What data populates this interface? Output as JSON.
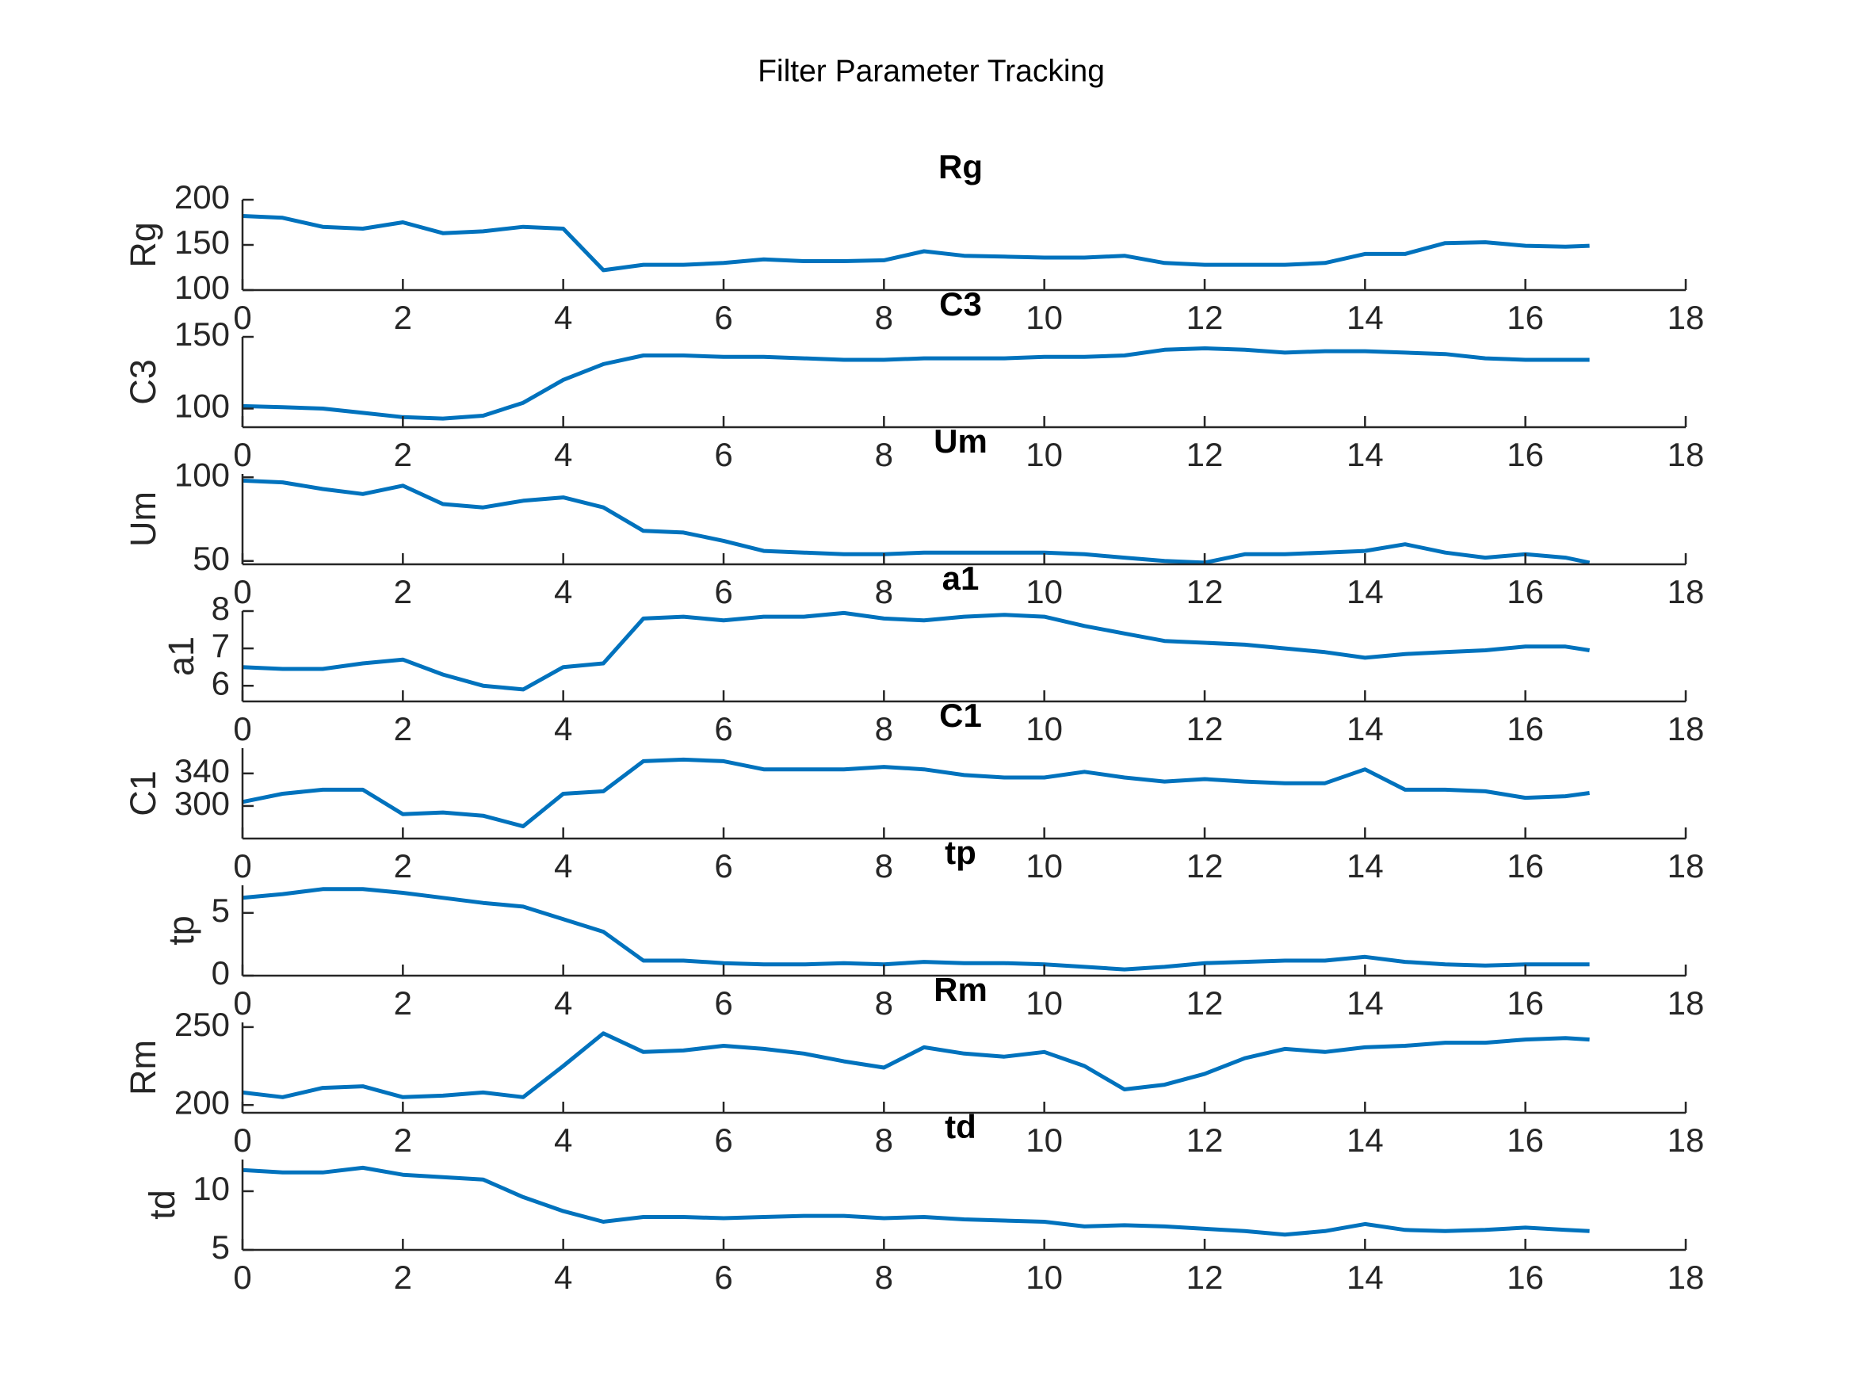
{
  "title": "Filter Parameter Tracking",
  "chart_data": [
    {
      "type": "line",
      "title": "Rg",
      "ylabel": "Rg",
      "color": "#0072bd",
      "x": [
        0,
        0.5,
        1,
        1.5,
        2,
        2.5,
        3,
        3.5,
        4,
        4.5,
        5,
        5.5,
        6,
        6.5,
        7,
        7.5,
        8,
        8.5,
        9,
        9.5,
        10,
        10.5,
        11,
        11.5,
        12,
        12.5,
        13,
        13.5,
        14,
        14.5,
        15,
        15.5,
        16,
        16.5,
        16.8
      ],
      "values": [
        182,
        180,
        170,
        168,
        175,
        163,
        165,
        170,
        168,
        122,
        128,
        128,
        130,
        134,
        132,
        132,
        133,
        143,
        138,
        137,
        136,
        136,
        138,
        130,
        128,
        128,
        128,
        130,
        140,
        140,
        152,
        153,
        149,
        148,
        149
      ],
      "xlim": [
        0,
        18
      ],
      "xticks": [
        0,
        2,
        4,
        6,
        8,
        10,
        12,
        14,
        16,
        18
      ],
      "ylim": [
        100,
        200
      ],
      "yticks": [
        100,
        150,
        200
      ]
    },
    {
      "type": "line",
      "title": "C3",
      "ylabel": "C3",
      "color": "#0072bd",
      "x": [
        0,
        0.5,
        1,
        1.5,
        2,
        2.5,
        3,
        3.5,
        4,
        4.5,
        5,
        5.5,
        6,
        6.5,
        7,
        7.5,
        8,
        8.5,
        9,
        9.5,
        10,
        10.5,
        11,
        11.5,
        12,
        12.5,
        13,
        13.5,
        14,
        14.5,
        15,
        15.5,
        16,
        16.5,
        16.8
      ],
      "values": [
        101.7,
        101,
        100,
        97,
        94,
        93,
        95,
        104,
        120,
        131,
        137,
        137,
        136,
        136,
        135,
        134,
        134,
        135,
        135,
        135,
        136,
        136,
        137,
        141,
        142,
        141,
        139,
        140,
        140,
        139,
        138,
        135,
        134,
        134,
        134
      ],
      "xlim": [
        0,
        18
      ],
      "xticks": [
        0,
        2,
        4,
        6,
        8,
        10,
        12,
        14,
        16,
        18
      ],
      "ylim": [
        87,
        150
      ],
      "yticks": [
        100,
        150
      ]
    },
    {
      "type": "line",
      "title": "Um",
      "ylabel": "Um",
      "color": "#0072bd",
      "x": [
        0,
        0.5,
        1,
        1.5,
        2,
        2.5,
        3,
        3.5,
        4,
        4.5,
        5,
        5.5,
        6,
        6.5,
        7,
        7.5,
        8,
        8.5,
        9,
        9.5,
        10,
        10.5,
        11,
        11.5,
        12,
        12.5,
        13,
        13.5,
        14,
        14.5,
        15,
        15.5,
        16,
        16.5,
        16.8
      ],
      "values": [
        98,
        97,
        93,
        90,
        95,
        84,
        82,
        86,
        88,
        82,
        68,
        67,
        62,
        56,
        55,
        54,
        54,
        55,
        55,
        55,
        55,
        54,
        52,
        50,
        49,
        54,
        54,
        55,
        56,
        60,
        55,
        52,
        54,
        52,
        49
      ],
      "xlim": [
        0,
        18
      ],
      "xticks": [
        0,
        2,
        4,
        6,
        8,
        10,
        12,
        14,
        16,
        18
      ],
      "ylim": [
        48,
        102
      ],
      "yticks": [
        50,
        100
      ]
    },
    {
      "type": "line",
      "title": "a1",
      "ylabel": "a1",
      "color": "#0072bd",
      "x": [
        0,
        0.5,
        1,
        1.5,
        2,
        2.5,
        3,
        3.5,
        4,
        4.5,
        5,
        5.5,
        6,
        6.5,
        7,
        7.5,
        8,
        8.5,
        9,
        9.5,
        10,
        10.5,
        11,
        11.5,
        12,
        12.5,
        13,
        13.5,
        14,
        14.5,
        15,
        15.5,
        16,
        16.5,
        16.8
      ],
      "values": [
        6.5,
        6.45,
        6.45,
        6.6,
        6.7,
        6.3,
        6.0,
        5.9,
        6.5,
        6.6,
        7.8,
        7.85,
        7.75,
        7.85,
        7.85,
        7.95,
        7.8,
        7.75,
        7.85,
        7.9,
        7.85,
        7.6,
        7.4,
        7.2,
        7.15,
        7.1,
        7.0,
        6.9,
        6.75,
        6.85,
        6.9,
        6.95,
        7.05,
        7.05,
        6.95
      ],
      "xlim": [
        0,
        18
      ],
      "xticks": [
        0,
        2,
        4,
        6,
        8,
        10,
        12,
        14,
        16,
        18
      ],
      "ylim": [
        5.58,
        8
      ],
      "yticks": [
        6,
        7,
        8
      ]
    },
    {
      "type": "line",
      "title": "C1",
      "ylabel": "C1",
      "color": "#0072bd",
      "x": [
        0,
        0.5,
        1,
        1.5,
        2,
        2.5,
        3,
        3.5,
        4,
        4.5,
        5,
        5.5,
        6,
        6.5,
        7,
        7.5,
        8,
        8.5,
        9,
        9.5,
        10,
        10.5,
        11,
        11.5,
        12,
        12.5,
        13,
        13.5,
        14,
        14.5,
        15,
        15.5,
        16,
        16.5,
        16.8
      ],
      "values": [
        305,
        315,
        320,
        320,
        290,
        292,
        288,
        275,
        315,
        318,
        355,
        357,
        355,
        345,
        345,
        345,
        348,
        345,
        338,
        335,
        335,
        342,
        335,
        330,
        333,
        330,
        328,
        328,
        345,
        320,
        320,
        318,
        310,
        312,
        316
      ],
      "xlim": [
        0,
        18
      ],
      "xticks": [
        0,
        2,
        4,
        6,
        8,
        10,
        12,
        14,
        16,
        18
      ],
      "ylim": [
        260,
        371
      ],
      "yticks": [
        300,
        340
      ]
    },
    {
      "type": "line",
      "title": "tp",
      "ylabel": "tp",
      "color": "#0072bd",
      "x": [
        0,
        0.5,
        1,
        1.5,
        2,
        2.5,
        3,
        3.5,
        4,
        4.5,
        5,
        5.5,
        6,
        6.5,
        7,
        7.5,
        8,
        8.5,
        9,
        9.5,
        10,
        10.5,
        11,
        11.5,
        12,
        12.5,
        13,
        13.5,
        14,
        14.5,
        15,
        15.5,
        16,
        16.5,
        16.8
      ],
      "values": [
        6.2,
        6.5,
        6.9,
        6.9,
        6.6,
        6.2,
        5.8,
        5.5,
        4.5,
        3.5,
        1.2,
        1.2,
        1.0,
        0.9,
        0.9,
        1.0,
        0.9,
        1.1,
        1.0,
        1.0,
        0.9,
        0.7,
        0.5,
        0.7,
        1.0,
        1.1,
        1.2,
        1.2,
        1.5,
        1.1,
        0.9,
        0.8,
        0.9,
        0.9,
        0.9
      ],
      "xlim": [
        0,
        18
      ],
      "xticks": [
        0,
        2,
        4,
        6,
        8,
        10,
        12,
        14,
        16,
        18
      ],
      "ylim": [
        0,
        7.2
      ],
      "yticks": [
        0,
        5
      ]
    },
    {
      "type": "line",
      "title": "Rm",
      "ylabel": "Rm",
      "color": "#0072bd",
      "x": [
        0,
        0.5,
        1,
        1.5,
        2,
        2.5,
        3,
        3.5,
        4,
        4.5,
        5,
        5.5,
        6,
        6.5,
        7,
        7.5,
        8,
        8.5,
        9,
        9.5,
        10,
        10.5,
        11,
        11.5,
        12,
        12.5,
        13,
        13.5,
        14,
        14.5,
        15,
        15.5,
        16,
        16.5,
        16.8
      ],
      "values": [
        208,
        205,
        211,
        212,
        205,
        206,
        208,
        205,
        225,
        246,
        234,
        235,
        238,
        236,
        233,
        228,
        224,
        237,
        233,
        231,
        234,
        225,
        210,
        213,
        220,
        230,
        236,
        234,
        237,
        238,
        240,
        240,
        242,
        243,
        242
      ],
      "xlim": [
        0,
        18
      ],
      "xticks": [
        0,
        2,
        4,
        6,
        8,
        10,
        12,
        14,
        16,
        18
      ],
      "ylim": [
        195,
        253
      ],
      "yticks": [
        200,
        250
      ]
    },
    {
      "type": "line",
      "title": "td",
      "ylabel": "td",
      "color": "#0072bd",
      "x": [
        0,
        0.5,
        1,
        1.5,
        2,
        2.5,
        3,
        3.5,
        4,
        4.5,
        5,
        5.5,
        6,
        6.5,
        7,
        7.5,
        8,
        8.5,
        9,
        9.5,
        10,
        10.5,
        11,
        11.5,
        12,
        12.5,
        13,
        13.5,
        14,
        14.5,
        15,
        15.5,
        16,
        16.5,
        16.8
      ],
      "values": [
        11.8,
        11.6,
        11.6,
        12,
        11.4,
        11.2,
        11,
        9.5,
        8.3,
        7.4,
        7.8,
        7.8,
        7.7,
        7.8,
        7.9,
        7.9,
        7.7,
        7.8,
        7.6,
        7.5,
        7.4,
        7.0,
        7.1,
        7.0,
        6.8,
        6.6,
        6.3,
        6.6,
        7.2,
        6.7,
        6.6,
        6.7,
        6.9,
        6.7,
        6.6
      ],
      "xlim": [
        0,
        18
      ],
      "xticks": [
        0,
        2,
        4,
        6,
        8,
        10,
        12,
        14,
        16,
        18
      ],
      "ylim": [
        5,
        12.7
      ],
      "yticks": [
        5,
        10
      ]
    }
  ]
}
